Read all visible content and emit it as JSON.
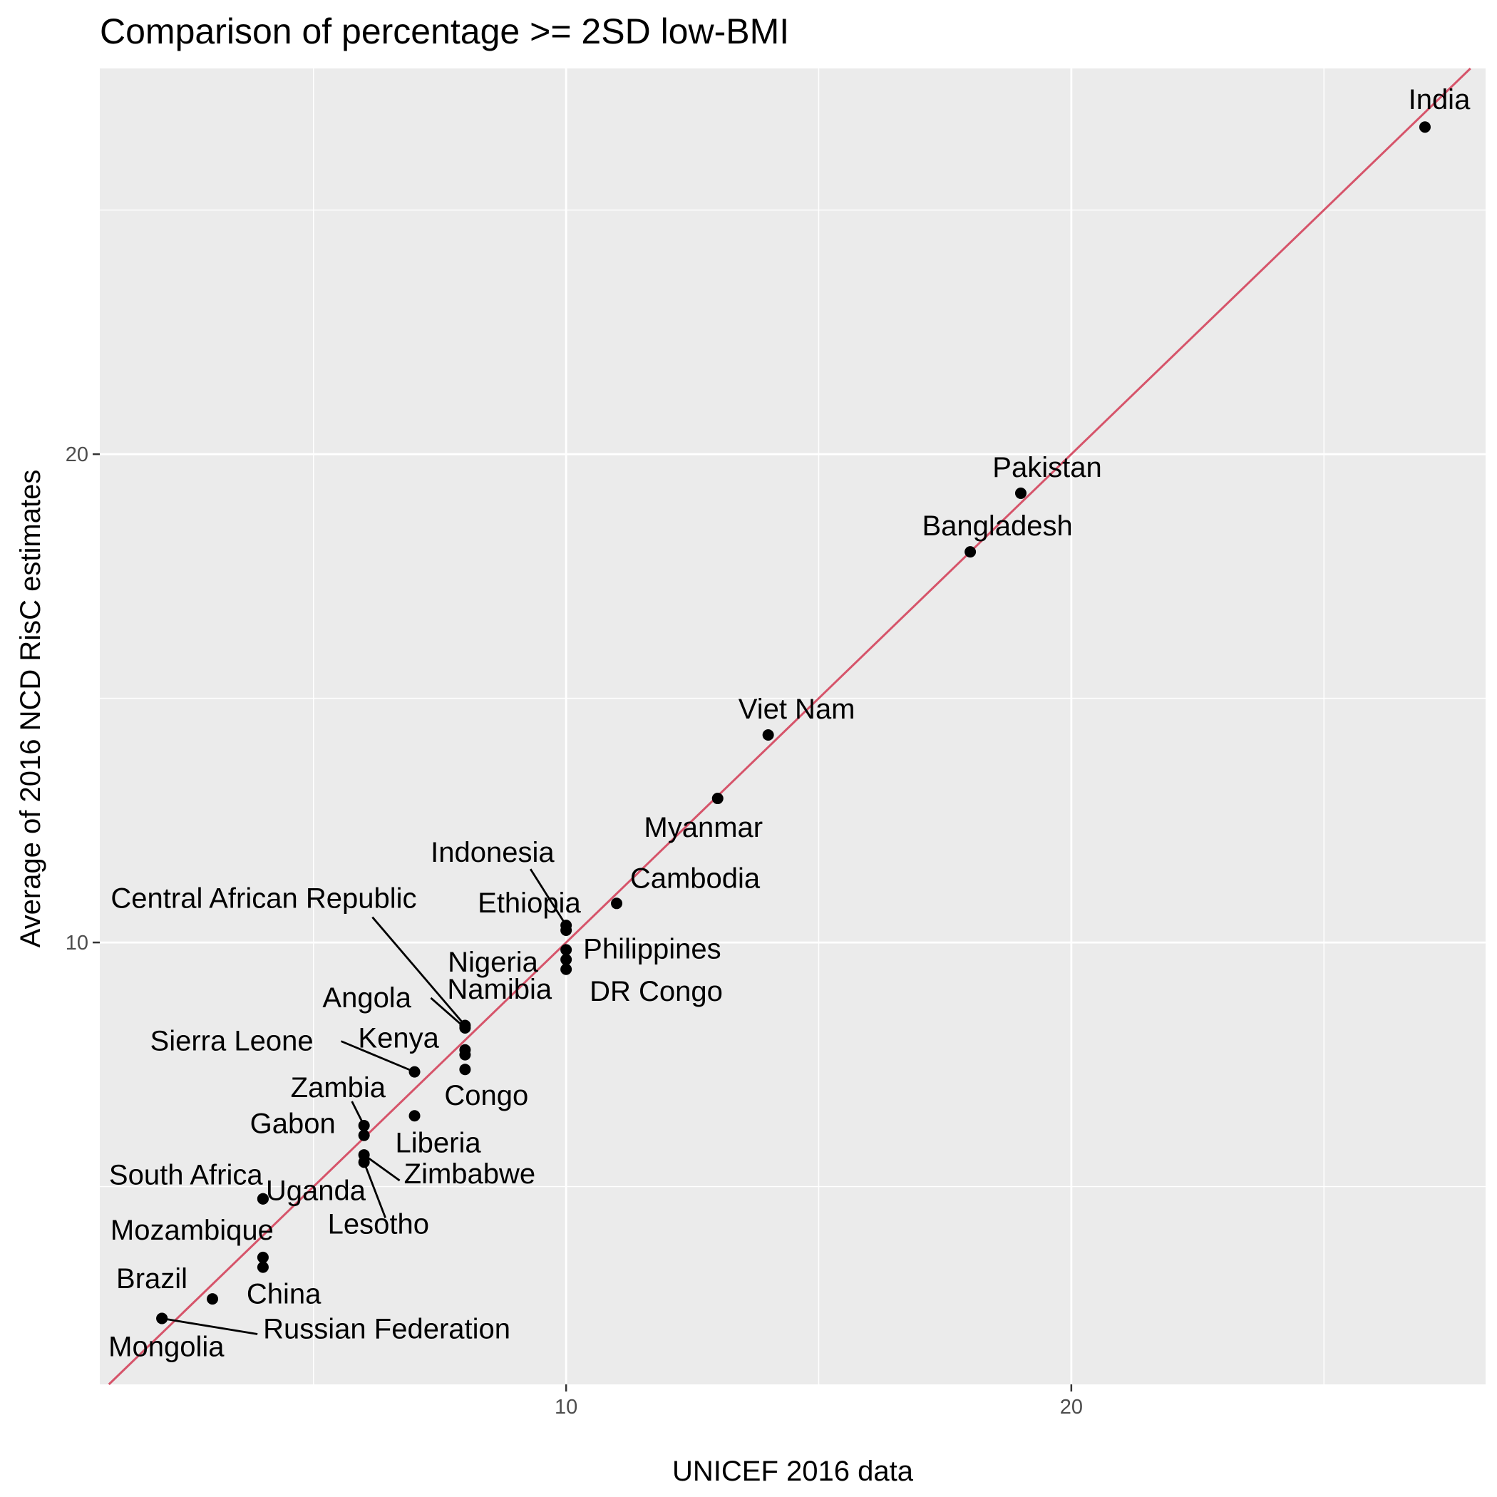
{
  "chart_data": {
    "type": "scatter",
    "title": "Comparison of percentage >= 2SD low-BMI",
    "xlabel": "UNICEF 2016 data",
    "ylabel": "Average of 2016 NCD RisC estimates",
    "xlim": [
      0.77,
      28.2
    ],
    "ylim": [
      0.95,
      27.9
    ],
    "x_ticks": [
      10,
      20
    ],
    "y_ticks": [
      10,
      20
    ],
    "x_minor": [
      5,
      15,
      25
    ],
    "y_minor": [
      5,
      15,
      25
    ],
    "reference_line": {
      "slope": 1,
      "intercept": 0,
      "color": "#d6546a"
    },
    "grid": true,
    "points": [
      {
        "label": "India",
        "x": 27,
        "y": 26.7
      },
      {
        "label": "Pakistan",
        "x": 19,
        "y": 19.2
      },
      {
        "label": "Bangladesh",
        "x": 18,
        "y": 18.0
      },
      {
        "label": "Viet Nam",
        "x": 14,
        "y": 14.25
      },
      {
        "label": "Myanmar",
        "x": 13,
        "y": 12.95
      },
      {
        "label": "Cambodia",
        "x": 11,
        "y": 10.8
      },
      {
        "label": "Indonesia",
        "x": 10,
        "y": 10.35
      },
      {
        "label": "Ethiopia",
        "x": 10,
        "y": 10.25
      },
      {
        "label": "Philippines",
        "x": 10,
        "y": 9.85
      },
      {
        "label": "Nigeria",
        "x": 10,
        "y": 9.65
      },
      {
        "label": "DR Congo",
        "x": 10,
        "y": 9.45
      },
      {
        "label": "Central African Republic",
        "x": 8,
        "y": 8.3
      },
      {
        "label": "Angola",
        "x": 8,
        "y": 8.25
      },
      {
        "label": "Namibia",
        "x": 8,
        "y": 7.8
      },
      {
        "label": "Kenya",
        "x": 8,
        "y": 7.7
      },
      {
        "label": "Congo",
        "x": 8,
        "y": 7.4
      },
      {
        "label": "Sierra Leone",
        "x": 7,
        "y": 7.35
      },
      {
        "label": "Liberia",
        "x": 7,
        "y": 6.45
      },
      {
        "label": "Zambia",
        "x": 6,
        "y": 6.25
      },
      {
        "label": "Gabon",
        "x": 6,
        "y": 6.05
      },
      {
        "label": "Zimbabwe",
        "x": 6,
        "y": 5.65
      },
      {
        "label": "Lesotho",
        "x": 6,
        "y": 5.5
      },
      {
        "label": "South Africa",
        "x": 4,
        "y": 4.75
      },
      {
        "label": "Uganda",
        "x": 4,
        "y": 4.75
      },
      {
        "label": "Mozambique",
        "x": 4,
        "y": 3.55
      },
      {
        "label": "China",
        "x": 4,
        "y": 3.35
      },
      {
        "label": "Brazil",
        "x": 3,
        "y": 2.7
      },
      {
        "label": "Mongolia",
        "x": 2,
        "y": 2.3
      },
      {
        "label": "Russian Federation",
        "x": 2,
        "y": 2.3
      }
    ]
  }
}
